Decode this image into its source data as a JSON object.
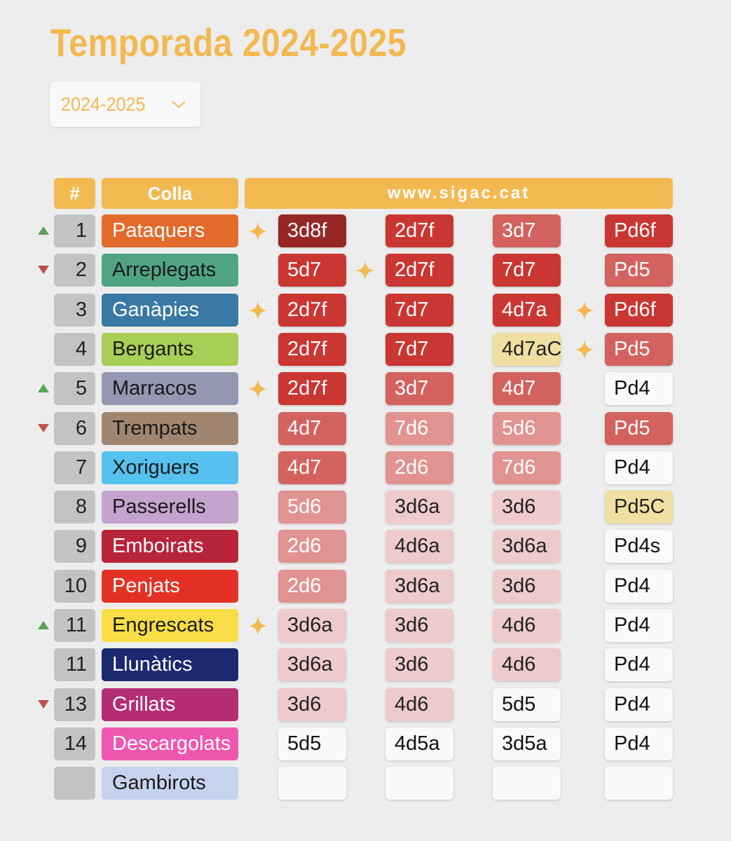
{
  "title": "Temporada 2024-2025",
  "season_select": {
    "value": "2024-2025"
  },
  "headers": {
    "rank": "#",
    "colla": "Colla",
    "link": "www.sigac.cat"
  },
  "colors": {
    "accent": "#f3b951",
    "up": "#5aa35a",
    "down": "#c0504d",
    "level": {
      "dark": "#962726",
      "red": "#ca3632",
      "medium": "#d3625e",
      "light": "#e09391",
      "pale": "#efcaca",
      "white": "#f9f9f9",
      "cream": "#efe0a1",
      "empty": "#f9f9f9"
    }
  },
  "rows": [
    {
      "trend": "up",
      "rank": "1",
      "name": "Pataquers",
      "color": "#e26b2c",
      "text_color": "#ffffff",
      "cells": [
        {
          "v": "3d8f",
          "lvl": "dark",
          "star": true
        },
        {
          "v": "2d7f",
          "lvl": "red",
          "star": false
        },
        {
          "v": "3d7",
          "lvl": "medium",
          "star": false
        },
        {
          "v": "Pd6f",
          "lvl": "red",
          "star": false
        }
      ]
    },
    {
      "trend": "down",
      "rank": "2",
      "name": "Arreplegats",
      "color": "#4fa583",
      "text_color": "#1a1a1a",
      "cells": [
        {
          "v": "5d7",
          "lvl": "red",
          "star": false
        },
        {
          "v": "2d7f",
          "lvl": "red",
          "star": true
        },
        {
          "v": "7d7",
          "lvl": "red",
          "star": false
        },
        {
          "v": "Pd5",
          "lvl": "medium",
          "star": false
        }
      ]
    },
    {
      "trend": "",
      "rank": "3",
      "name": "Ganàpies",
      "color": "#3a79a3",
      "text_color": "#ffffff",
      "cells": [
        {
          "v": "2d7f",
          "lvl": "red",
          "star": true
        },
        {
          "v": "7d7",
          "lvl": "red",
          "star": false
        },
        {
          "v": "4d7a",
          "lvl": "red",
          "star": false
        },
        {
          "v": "Pd6f",
          "lvl": "red",
          "star": true
        }
      ]
    },
    {
      "trend": "",
      "rank": "4",
      "name": "Bergants",
      "color": "#a8cf55",
      "text_color": "#1a1a1a",
      "cells": [
        {
          "v": "2d7f",
          "lvl": "red",
          "star": false
        },
        {
          "v": "7d7",
          "lvl": "red",
          "star": false
        },
        {
          "v": "4d7aC",
          "lvl": "cream",
          "star": false
        },
        {
          "v": "Pd5",
          "lvl": "medium",
          "star": true
        }
      ]
    },
    {
      "trend": "up",
      "rank": "5",
      "name": "Marracos",
      "color": "#9397b1",
      "text_color": "#1a1a1a",
      "cells": [
        {
          "v": "2d7f",
          "lvl": "red",
          "star": true
        },
        {
          "v": "3d7",
          "lvl": "medium",
          "star": false
        },
        {
          "v": "4d7",
          "lvl": "medium",
          "star": false
        },
        {
          "v": "Pd4",
          "lvl": "white",
          "star": false
        }
      ]
    },
    {
      "trend": "down",
      "rank": "6",
      "name": "Trempats",
      "color": "#a08670",
      "text_color": "#1a1a1a",
      "cells": [
        {
          "v": "4d7",
          "lvl": "medium",
          "star": false
        },
        {
          "v": "7d6",
          "lvl": "light",
          "star": false
        },
        {
          "v": "5d6",
          "lvl": "light",
          "star": false
        },
        {
          "v": "Pd5",
          "lvl": "medium",
          "star": false
        }
      ]
    },
    {
      "trend": "",
      "rank": "7",
      "name": "Xoriguers",
      "color": "#56c0ee",
      "text_color": "#1a1a1a",
      "cells": [
        {
          "v": "4d7",
          "lvl": "medium",
          "star": false
        },
        {
          "v": "2d6",
          "lvl": "light",
          "star": false
        },
        {
          "v": "7d6",
          "lvl": "light",
          "star": false
        },
        {
          "v": "Pd4",
          "lvl": "white",
          "star": false
        }
      ]
    },
    {
      "trend": "",
      "rank": "8",
      "name": "Passerells",
      "color": "#c4a4cf",
      "text_color": "#1a1a1a",
      "cells": [
        {
          "v": "5d6",
          "lvl": "light",
          "star": false
        },
        {
          "v": "3d6a",
          "lvl": "pale",
          "star": false
        },
        {
          "v": "3d6",
          "lvl": "pale",
          "star": false
        },
        {
          "v": "Pd5C",
          "lvl": "cream",
          "star": false
        }
      ]
    },
    {
      "trend": "",
      "rank": "9",
      "name": "Emboirats",
      "color": "#b8243a",
      "text_color": "#ffffff",
      "cells": [
        {
          "v": "2d6",
          "lvl": "light",
          "star": false
        },
        {
          "v": "4d6a",
          "lvl": "pale",
          "star": false
        },
        {
          "v": "3d6a",
          "lvl": "pale",
          "star": false
        },
        {
          "v": "Pd4s",
          "lvl": "white",
          "star": false
        }
      ]
    },
    {
      "trend": "",
      "rank": "10",
      "name": "Penjats",
      "color": "#e33225",
      "text_color": "#ffffff",
      "cells": [
        {
          "v": "2d6",
          "lvl": "light",
          "star": false
        },
        {
          "v": "3d6a",
          "lvl": "pale",
          "star": false
        },
        {
          "v": "3d6",
          "lvl": "pale",
          "star": false
        },
        {
          "v": "Pd4",
          "lvl": "white",
          "star": false
        }
      ]
    },
    {
      "trend": "up",
      "rank": "11",
      "name": "Engrescats",
      "color": "#f8dd46",
      "text_color": "#1a1a1a",
      "cells": [
        {
          "v": "3d6a",
          "lvl": "pale",
          "star": true
        },
        {
          "v": "3d6",
          "lvl": "pale",
          "star": false
        },
        {
          "v": "4d6",
          "lvl": "pale",
          "star": false
        },
        {
          "v": "Pd4",
          "lvl": "white",
          "star": false
        }
      ]
    },
    {
      "trend": "",
      "rank": "11",
      "name": "Llunàtics",
      "color": "#1e2870",
      "text_color": "#ffffff",
      "cells": [
        {
          "v": "3d6a",
          "lvl": "pale",
          "star": false
        },
        {
          "v": "3d6",
          "lvl": "pale",
          "star": false
        },
        {
          "v": "4d6",
          "lvl": "pale",
          "star": false
        },
        {
          "v": "Pd4",
          "lvl": "white",
          "star": false
        }
      ]
    },
    {
      "trend": "down",
      "rank": "13",
      "name": "Grillats",
      "color": "#b52d75",
      "text_color": "#ffffff",
      "cells": [
        {
          "v": "3d6",
          "lvl": "pale",
          "star": false
        },
        {
          "v": "4d6",
          "lvl": "pale",
          "star": false
        },
        {
          "v": "5d5",
          "lvl": "white",
          "star": false
        },
        {
          "v": "Pd4",
          "lvl": "white",
          "star": false
        }
      ]
    },
    {
      "trend": "",
      "rank": "14",
      "name": "Descargolats",
      "color": "#ee56b0",
      "text_color": "#ffffff",
      "cells": [
        {
          "v": "5d5",
          "lvl": "white",
          "star": false
        },
        {
          "v": "4d5a",
          "lvl": "white",
          "star": false
        },
        {
          "v": "3d5a",
          "lvl": "white",
          "star": false
        },
        {
          "v": "Pd4",
          "lvl": "white",
          "star": false
        }
      ]
    },
    {
      "trend": "",
      "rank": "",
      "name": "Gambirots",
      "color": "#c6d3ee",
      "text_color": "#1a1a1a",
      "cells": [
        {
          "v": "",
          "lvl": "empty",
          "star": false
        },
        {
          "v": "",
          "lvl": "empty",
          "star": false
        },
        {
          "v": "",
          "lvl": "empty",
          "star": false
        },
        {
          "v": "",
          "lvl": "empty",
          "star": false
        }
      ]
    }
  ]
}
